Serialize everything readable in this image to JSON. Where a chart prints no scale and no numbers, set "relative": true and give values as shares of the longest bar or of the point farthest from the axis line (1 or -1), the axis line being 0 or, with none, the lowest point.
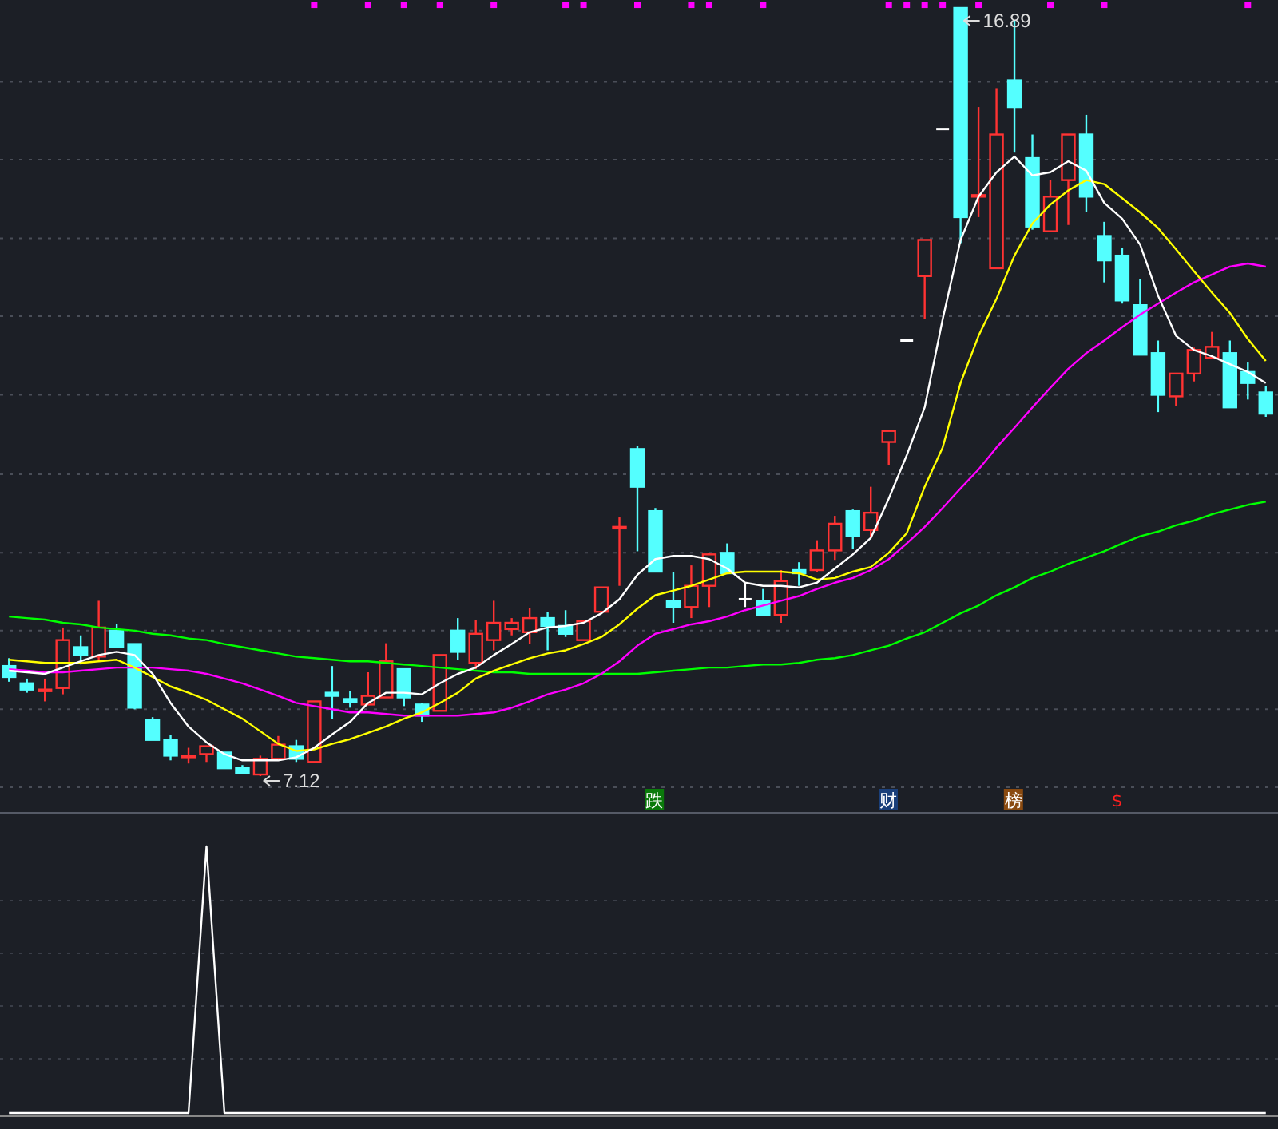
{
  "chart_data": [
    {
      "type": "candlestick",
      "categories": [
        null,
        null,
        null,
        null,
        null,
        null,
        null,
        null,
        null,
        null,
        null,
        null,
        null,
        null,
        null,
        null,
        null,
        null,
        null,
        null,
        null,
        null,
        null,
        null,
        null,
        null,
        null,
        null,
        null,
        null,
        null,
        null,
        null,
        null,
        null,
        null,
        null,
        null,
        null,
        null,
        null,
        null,
        null,
        null,
        null,
        null,
        null,
        null,
        null,
        null,
        null,
        null,
        null,
        null,
        null,
        null,
        null,
        null,
        null,
        null,
        null,
        null,
        null,
        null,
        null,
        null,
        null,
        null,
        null,
        null,
        null
      ],
      "ohlc": [
        [
          8.52,
          8.62,
          8.32,
          8.38
        ],
        [
          8.3,
          8.36,
          8.18,
          8.22
        ],
        [
          8.2,
          8.36,
          8.07,
          8.22
        ],
        [
          8.24,
          9.01,
          8.16,
          8.85
        ],
        [
          8.76,
          8.91,
          8.54,
          8.66
        ],
        [
          8.64,
          9.35,
          8.6,
          9.01
        ],
        [
          8.97,
          9.05,
          8.76,
          8.76
        ],
        [
          8.8,
          8.8,
          7.97,
          7.99
        ],
        [
          7.83,
          7.87,
          7.58,
          7.58
        ],
        [
          7.58,
          7.64,
          7.32,
          7.38
        ],
        [
          7.37,
          7.48,
          7.28,
          7.38
        ],
        [
          7.4,
          7.5,
          7.3,
          7.5
        ],
        [
          7.42,
          7.42,
          7.22,
          7.22
        ],
        [
          7.22,
          7.26,
          7.14,
          7.16
        ],
        [
          7.14,
          7.38,
          7.12,
          7.34
        ],
        [
          7.34,
          7.63,
          7.34,
          7.52
        ],
        [
          7.5,
          7.58,
          7.3,
          7.34
        ],
        [
          7.3,
          8.07,
          7.3,
          8.07
        ],
        [
          8.18,
          8.52,
          7.85,
          8.14
        ],
        [
          8.1,
          8.2,
          7.99,
          8.06
        ],
        [
          8.03,
          8.44,
          8.03,
          8.14
        ],
        [
          8.12,
          8.81,
          8.12,
          8.58
        ],
        [
          8.48,
          8.48,
          8.01,
          8.12
        ],
        [
          8.03,
          8.05,
          7.81,
          7.89
        ],
        [
          7.95,
          8.66,
          7.95,
          8.66
        ],
        [
          8.97,
          9.13,
          8.6,
          8.7
        ],
        [
          8.56,
          9.11,
          8.48,
          8.93
        ],
        [
          8.85,
          9.35,
          8.72,
          9.07
        ],
        [
          8.99,
          9.13,
          8.91,
          9.07
        ],
        [
          8.95,
          9.26,
          8.8,
          9.13
        ],
        [
          9.13,
          9.21,
          8.72,
          9.03
        ],
        [
          9.03,
          9.23,
          8.89,
          8.93
        ],
        [
          8.85,
          9.09,
          8.85,
          9.09
        ],
        [
          9.21,
          9.52,
          9.21,
          9.52
        ],
        [
          10.27,
          10.41,
          9.54,
          10.29
        ],
        [
          11.28,
          11.32,
          9.98,
          10.8
        ],
        [
          10.49,
          10.53,
          9.72,
          9.72
        ],
        [
          9.35,
          9.72,
          9.07,
          9.27
        ],
        [
          9.27,
          9.8,
          9.13,
          9.54
        ],
        [
          9.54,
          9.96,
          9.27,
          9.94
        ],
        [
          9.96,
          10.08,
          9.7,
          9.7
        ],
        [
          9.37,
          9.58,
          9.27,
          9.37
        ],
        [
          9.35,
          9.5,
          9.17,
          9.17
        ],
        [
          9.17,
          9.74,
          9.07,
          9.6
        ],
        [
          9.74,
          9.84,
          9.54,
          9.7
        ],
        [
          9.74,
          10.12,
          9.72,
          9.99
        ],
        [
          9.99,
          10.43,
          9.87,
          10.33
        ],
        [
          10.49,
          10.51,
          10.01,
          10.17
        ],
        [
          10.25,
          10.8,
          10.15,
          10.47
        ],
        [
          11.37,
          11.51,
          11.08,
          11.51
        ],
        [
          12.66,
          12.66,
          12.66,
          12.66
        ],
        [
          13.48,
          13.94,
          12.93,
          13.94
        ],
        [
          15.35,
          15.35,
          15.35,
          15.35
        ],
        [
          16.89,
          16.89,
          13.9,
          14.23
        ],
        [
          14.49,
          15.63,
          14.23,
          14.51
        ],
        [
          13.58,
          15.87,
          13.58,
          15.28
        ],
        [
          15.97,
          16.73,
          15.06,
          15.63
        ],
        [
          14.98,
          15.28,
          14.07,
          14.11
        ],
        [
          14.05,
          14.7,
          14.05,
          14.49
        ],
        [
          14.7,
          15.28,
          14.13,
          15.28
        ],
        [
          15.28,
          15.53,
          14.29,
          14.49
        ],
        [
          13.99,
          14.17,
          13.4,
          13.68
        ],
        [
          13.74,
          13.84,
          13.13,
          13.17
        ],
        [
          13.11,
          13.44,
          12.48,
          12.48
        ],
        [
          12.5,
          12.66,
          11.75,
          11.97
        ],
        [
          11.95,
          12.24,
          11.83,
          12.24
        ],
        [
          12.24,
          12.57,
          12.14,
          12.54
        ],
        [
          12.44,
          12.77,
          12.44,
          12.58
        ],
        [
          12.5,
          12.66,
          11.81,
          11.81
        ],
        [
          12.26,
          12.38,
          11.91,
          12.12
        ],
        [
          12.0,
          12.08,
          11.69,
          11.73
        ]
      ],
      "colors": [
        "#54ffff",
        "#54ffff",
        "#ff3333",
        "#ff3333",
        "#54ffff",
        "#ff3333",
        "#54ffff",
        "#54ffff",
        "#54ffff",
        "#54ffff",
        "#ff3333",
        "#ff3333",
        "#54ffff",
        "#54ffff",
        "#ff3333",
        "#ff3333",
        "#54ffff",
        "#ff3333",
        "#54ffff",
        "#54ffff",
        "#ff3333",
        "#ff3333",
        "#54ffff",
        "#54ffff",
        "#ff3333",
        "#54ffff",
        "#ff3333",
        "#ff3333",
        "#ff3333",
        "#ff3333",
        "#54ffff",
        "#54ffff",
        "#ff3333",
        "#ff3333",
        "#ff3333",
        "#54ffff",
        "#54ffff",
        "#54ffff",
        "#ff3333",
        "#ff3333",
        "#54ffff",
        "#ffffff",
        "#54ffff",
        "#ff3333",
        "#54ffff",
        "#ff3333",
        "#ff3333",
        "#54ffff",
        "#ff3333",
        "#ff3333",
        "#ffffff",
        "#ff3333",
        "#ffffff",
        "#54ffff",
        "#ff3333",
        "#ff3333",
        "#54ffff",
        "#54ffff",
        "#ff3333",
        "#ff3333",
        "#54ffff",
        "#54ffff",
        "#54ffff",
        "#54ffff",
        "#54ffff",
        "#ff3333",
        "#ff3333",
        "#ff3333",
        "#54ffff",
        "#54ffff",
        "#54ffff"
      ],
      "series": [
        {
          "type": "line",
          "color": "#00ff00",
          "values": [
            9.15,
            9.13,
            9.11,
            9.07,
            9.05,
            9.01,
            8.99,
            8.97,
            8.93,
            8.91,
            8.87,
            8.85,
            8.8,
            8.76,
            8.72,
            8.68,
            8.64,
            8.62,
            8.6,
            8.58,
            8.58,
            8.56,
            8.54,
            8.52,
            8.5,
            8.48,
            8.46,
            8.44,
            8.44,
            8.42,
            8.42,
            8.42,
            8.42,
            8.42,
            8.42,
            8.42,
            8.44,
            8.46,
            8.48,
            8.5,
            8.5,
            8.52,
            8.54,
            8.54,
            8.56,
            8.6,
            8.62,
            8.66,
            8.72,
            8.78,
            8.87,
            8.95,
            9.07,
            9.19,
            9.29,
            9.42,
            9.52,
            9.64,
            9.72,
            9.82,
            9.9,
            9.98,
            10.08,
            10.17,
            10.23,
            10.31,
            10.37,
            10.45,
            10.51,
            10.57,
            10.61
          ]
        },
        {
          "type": "line",
          "color": "#ff00ff",
          "values": [
            8.48,
            8.46,
            8.44,
            8.44,
            8.46,
            8.48,
            8.5,
            8.5,
            8.5,
            8.48,
            8.46,
            8.42,
            8.36,
            8.3,
            8.22,
            8.14,
            8.05,
            8.01,
            7.97,
            7.93,
            7.93,
            7.91,
            7.89,
            7.89,
            7.89,
            7.89,
            7.91,
            7.93,
            7.99,
            8.07,
            8.16,
            8.22,
            8.3,
            8.42,
            8.58,
            8.78,
            8.93,
            8.99,
            9.05,
            9.09,
            9.15,
            9.23,
            9.29,
            9.35,
            9.41,
            9.5,
            9.58,
            9.64,
            9.74,
            9.88,
            10.08,
            10.29,
            10.53,
            10.78,
            11.02,
            11.3,
            11.55,
            11.81,
            12.06,
            12.3,
            12.5,
            12.66,
            12.83,
            12.99,
            13.13,
            13.27,
            13.4,
            13.5,
            13.6,
            13.64,
            13.6
          ]
        },
        {
          "type": "line",
          "color": "#ffff00",
          "values": [
            8.6,
            8.58,
            8.56,
            8.56,
            8.56,
            8.58,
            8.6,
            8.5,
            8.38,
            8.26,
            8.18,
            8.09,
            7.97,
            7.85,
            7.69,
            7.53,
            7.44,
            7.46,
            7.53,
            7.59,
            7.67,
            7.75,
            7.85,
            7.93,
            8.05,
            8.18,
            8.36,
            8.46,
            8.54,
            8.62,
            8.68,
            8.72,
            8.8,
            8.89,
            9.05,
            9.25,
            9.42,
            9.48,
            9.54,
            9.62,
            9.7,
            9.72,
            9.72,
            9.72,
            9.7,
            9.62,
            9.64,
            9.72,
            9.78,
            9.96,
            10.21,
            10.8,
            11.3,
            12.12,
            12.72,
            13.19,
            13.74,
            14.15,
            14.39,
            14.57,
            14.7,
            14.65,
            14.47,
            14.29,
            14.09,
            13.82,
            13.54,
            13.27,
            13.01,
            12.68,
            12.4
          ]
        },
        {
          "type": "line",
          "color": "#ffffff",
          "values": [
            8.46,
            8.44,
            8.42,
            8.5,
            8.58,
            8.66,
            8.7,
            8.66,
            8.42,
            8.05,
            7.75,
            7.55,
            7.4,
            7.32,
            7.32,
            7.32,
            7.36,
            7.48,
            7.65,
            7.81,
            8.05,
            8.18,
            8.18,
            8.16,
            8.3,
            8.42,
            8.5,
            8.66,
            8.8,
            8.95,
            9.01,
            9.03,
            9.07,
            9.19,
            9.37,
            9.68,
            9.88,
            9.92,
            9.92,
            9.88,
            9.76,
            9.58,
            9.54,
            9.54,
            9.52,
            9.58,
            9.76,
            9.94,
            10.15,
            10.65,
            11.2,
            11.81,
            12.93,
            13.94,
            14.49,
            14.8,
            15.0,
            14.76,
            14.8,
            14.94,
            14.82,
            14.41,
            14.21,
            13.88,
            13.23,
            12.72,
            12.54,
            12.46,
            12.36,
            12.26,
            12.12
          ]
        },
        {
          "type": "scatter",
          "color": "#ff00ff",
          "marker": "square",
          "values": [
            null,
            null,
            null,
            null,
            null,
            null,
            null,
            null,
            null,
            null,
            null,
            null,
            null,
            null,
            null,
            null,
            null,
            16.93,
            null,
            null,
            16.93,
            null,
            16.93,
            null,
            16.93,
            null,
            null,
            16.93,
            null,
            null,
            null,
            16.93,
            16.93,
            null,
            null,
            16.93,
            null,
            null,
            16.93,
            16.93,
            null,
            null,
            16.93,
            null,
            null,
            null,
            null,
            null,
            null,
            16.93,
            16.93,
            16.93,
            16.93,
            null,
            16.93,
            null,
            null,
            null,
            16.93,
            null,
            null,
            16.93,
            null,
            null,
            null,
            null,
            null,
            null,
            null,
            16.93,
            null
          ]
        }
      ],
      "grid": "y",
      "yticks": [
        {
          "value": 15.95,
          "label": null
        },
        {
          "value": 14.96,
          "label": null
        },
        {
          "value": 13.96,
          "label": null
        },
        {
          "value": 12.97,
          "label": null
        },
        {
          "value": 11.97,
          "label": null
        },
        {
          "value": 10.96,
          "label": null
        },
        {
          "value": 9.96,
          "label": null
        },
        {
          "value": 8.97,
          "label": null
        },
        {
          "value": 7.97,
          "label": null
        }
      ],
      "annotations": [
        "16.89",
        "7.12",
        "跌",
        "财",
        "榜",
        "$"
      ]
    },
    {
      "type": "line",
      "relative": true,
      "categories": [
        null,
        null,
        null,
        null,
        null,
        null,
        null,
        null,
        null,
        null,
        null,
        null,
        null,
        null,
        null,
        null,
        null,
        null,
        null,
        null,
        null,
        null,
        null,
        null,
        null,
        null,
        null,
        null,
        null,
        null,
        null,
        null,
        null,
        null,
        null,
        null,
        null,
        null,
        null,
        null,
        null,
        null,
        null,
        null,
        null,
        null,
        null,
        null,
        null,
        null,
        null,
        null,
        null,
        null,
        null,
        null,
        null,
        null,
        null,
        null,
        null,
        null,
        null,
        null,
        null,
        null,
        null,
        null,
        null,
        null,
        null
      ],
      "series": [
        {
          "color": "#ffffff",
          "values": [
            0,
            0,
            0,
            0,
            0,
            0,
            0,
            0,
            0,
            0,
            0,
            1,
            0,
            0,
            0,
            0,
            0,
            0,
            0,
            0,
            0,
            0,
            0,
            0,
            0,
            0,
            0,
            0,
            0,
            0,
            0,
            0,
            0,
            0,
            0,
            0,
            0,
            0,
            0,
            0,
            0,
            0,
            0,
            0,
            0,
            0,
            0,
            0,
            0,
            0,
            0,
            0,
            0,
            0,
            0,
            0,
            0,
            0,
            0,
            0,
            0,
            0,
            0,
            0,
            0,
            0,
            0,
            0,
            0,
            0,
            0
          ]
        }
      ]
    }
  ]
}
